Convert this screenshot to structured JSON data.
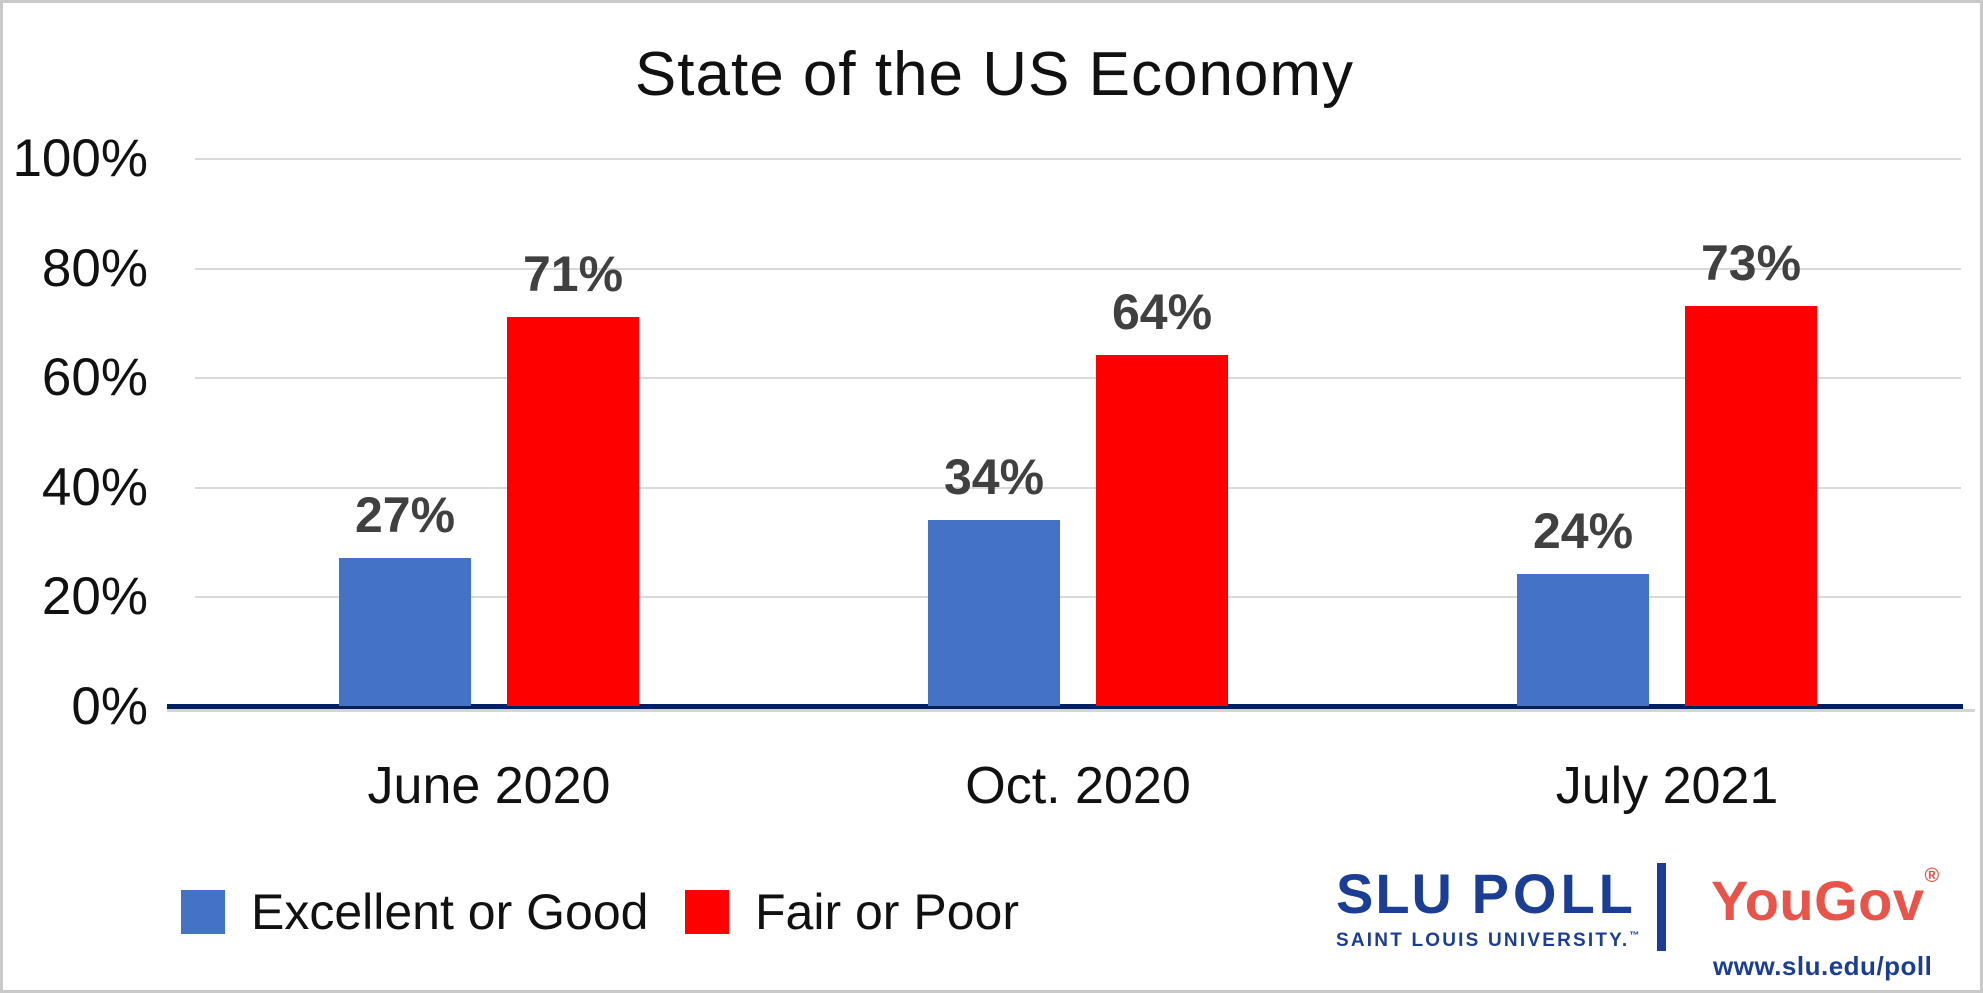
{
  "chart_data": {
    "type": "bar",
    "title": "State of the US Economy",
    "categories": [
      "June 2020",
      "Oct. 2020",
      "July 2021"
    ],
    "series": [
      {
        "name": "Excellent or Good",
        "color": "#4472C4",
        "values": [
          27,
          34,
          24
        ]
      },
      {
        "name": "Fair or Poor",
        "color": "#FF0000",
        "values": [
          71,
          64,
          73
        ]
      }
    ],
    "value_suffix": "%",
    "data_labels": [
      [
        "27%",
        "34%",
        "24%"
      ],
      [
        "71%",
        "64%",
        "73%"
      ]
    ],
    "y_axis": {
      "min": 0,
      "max": 100,
      "step": 20,
      "tick_labels": [
        "0%",
        "20%",
        "40%",
        "60%",
        "80%",
        "100%"
      ]
    },
    "grid": true,
    "gridline_color": "#D9D9D9",
    "axis_line_color": "#002060",
    "data_label_color": "#404040",
    "legend_position": "bottom-left"
  },
  "branding": {
    "slu_poll_1": "SLU",
    "slu_poll_2": "POLL",
    "slu_university": "SAINT LOUIS UNIVERSITY.",
    "slu_tm": "™",
    "yougov": "YouGov",
    "yougov_reg": "®",
    "url": "www.slu.edu/poll",
    "slu_blue": "#1B3E94",
    "yougov_red": "#E8544A"
  }
}
